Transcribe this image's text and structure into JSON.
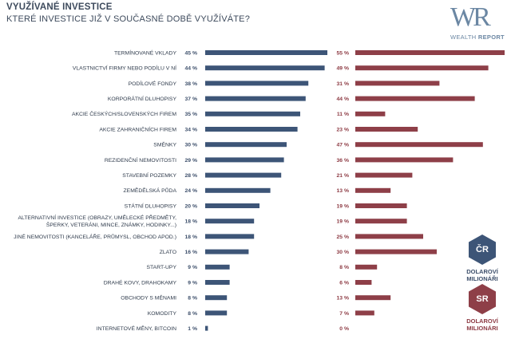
{
  "header": {
    "title": "VYUŽÍVANÉ INVESTICE",
    "subtitle": "KTERÉ INVESTICE JIŽ V SOUČASNÉ DOBĚ VYUŽÍVÁTE?"
  },
  "logo": {
    "mark": "WR",
    "text_light": "WEALTH",
    "text_bold": "REPORT"
  },
  "legend": {
    "cz": {
      "badge": "ČR",
      "line1": "DOLAROVÍ",
      "line2": "MILIONÁŘI",
      "color": "#3d5577"
    },
    "sk": {
      "badge": "SR",
      "line1": "DOLAROVÍ",
      "line2": "MILIONÁRI",
      "color": "#8e3f48"
    }
  },
  "chart_data": {
    "type": "bar",
    "orientation": "horizontal",
    "title": "KTERÉ INVESTICE JIŽ V SOUČASNÉ DOBĚ VYUŽÍVÁTE?",
    "categories": [
      [
        "TERMÍNOVANÉ VKLADY"
      ],
      [
        "VLASTNICTVÍ FIRMY NEBO PODÍLU V NÍ"
      ],
      [
        "PODÍLOVÉ FONDY"
      ],
      [
        "KORPORÁTNÍ DLUHOPISY"
      ],
      [
        "AKCIE ČESKÝCH/SLOVENSKÝCH FIREM"
      ],
      [
        "AKCIE ZAHRANIČNÍCH FIREM"
      ],
      [
        "SMĚNKY"
      ],
      [
        "REZIDENČNÍ NEMOVITOSTI"
      ],
      [
        "STAVEBNÍ POZEMKY"
      ],
      [
        "ZEMĚDĚLSKÁ PŮDA"
      ],
      [
        "STÁTNÍ DLUHOPISY"
      ],
      [
        "ALTERNATIVNÍ INVESTICE (OBRAZY, UMĚLECKÉ PŘEDMĚTY,",
        "ŠPERKY, VETERÁNI, MINCE, ZNÁMKY, HODINKY...)"
      ],
      [
        "JINÉ NEMOVITOSTI (KANCELÁŘE, PRŮMYSL, OBCHOD APOD.)"
      ],
      [
        "ZLATO"
      ],
      [
        "START-UPY"
      ],
      [
        "DRAHÉ KOVY, DRAHOKAMY"
      ],
      [
        "OBCHODY S MĚNAMI"
      ],
      [
        "KOMODITY"
      ],
      [
        "INTERNETOVÉ MĚNY, BITCOIN"
      ]
    ],
    "series": [
      {
        "name": "ČR – DOLAROVÍ MILIONÁŘI",
        "color": "#3d5577",
        "values": [
          45,
          44,
          38,
          37,
          35,
          34,
          30,
          29,
          28,
          24,
          20,
          18,
          18,
          16,
          9,
          9,
          8,
          8,
          1
        ]
      },
      {
        "name": "SR – DOLAROVÍ MILIONÁRI",
        "color": "#8e3f48",
        "values": [
          55,
          49,
          31,
          44,
          11,
          23,
          47,
          36,
          21,
          13,
          19,
          19,
          25,
          30,
          8,
          6,
          13,
          7,
          0
        ]
      }
    ],
    "unit": "%",
    "xlim": [
      0,
      55
    ]
  }
}
